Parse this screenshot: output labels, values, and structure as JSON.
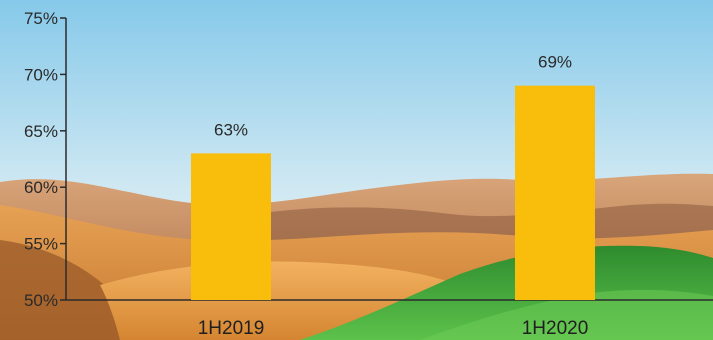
{
  "chart_data": {
    "type": "bar",
    "categories": [
      "1H2019",
      "1H2020"
    ],
    "values": [
      63,
      69
    ],
    "data_labels": [
      "63%",
      "69%"
    ],
    "yticks": [
      "50%",
      "55%",
      "60%",
      "65%",
      "70%",
      "75%"
    ],
    "ylim": [
      50,
      75
    ],
    "grid": false,
    "legend": "none",
    "title": "",
    "xlabel": "",
    "ylabel": "",
    "colors": {
      "bar": "#F9BE0B",
      "axis": "#2b2b2b",
      "sky_top": "#8CCCEB",
      "sky_bottom": "#EEF5F4",
      "sand": "#D88E3C",
      "grass": "#3FA53A"
    }
  }
}
